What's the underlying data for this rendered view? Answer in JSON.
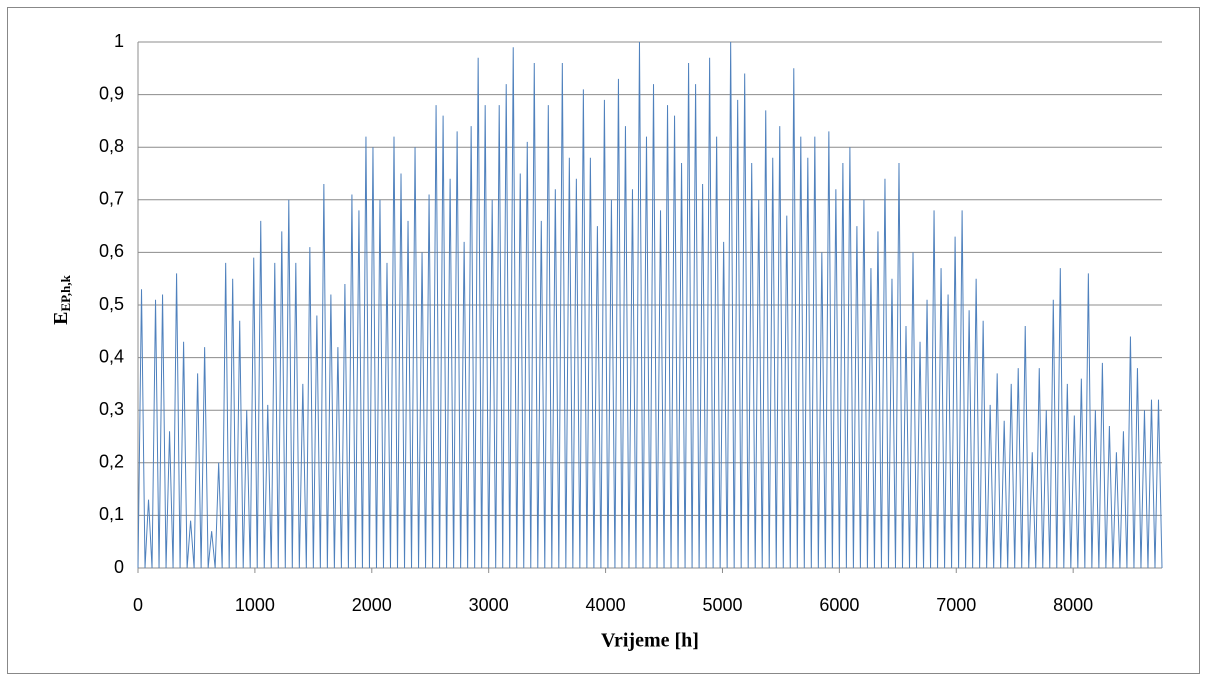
{
  "chart_data": {
    "type": "line",
    "xlabel": "Vrijeme [h]",
    "ylabel": "E",
    "ylabel_sub": "EP,h,k",
    "x": [
      0,
      30,
      60,
      90,
      120,
      150,
      180,
      210,
      240,
      270,
      300,
      330,
      360,
      390,
      420,
      450,
      480,
      510,
      540,
      570,
      600,
      630,
      660,
      690,
      720,
      750,
      780,
      810,
      840,
      870,
      900,
      930,
      960,
      990,
      1020,
      1050,
      1080,
      1110,
      1140,
      1170,
      1200,
      1230,
      1260,
      1290,
      1320,
      1350,
      1380,
      1410,
      1440,
      1470,
      1500,
      1530,
      1560,
      1590,
      1620,
      1650,
      1680,
      1710,
      1740,
      1770,
      1800,
      1830,
      1860,
      1890,
      1920,
      1950,
      1980,
      2010,
      2040,
      2070,
      2100,
      2130,
      2160,
      2190,
      2220,
      2250,
      2280,
      2310,
      2340,
      2370,
      2400,
      2430,
      2460,
      2490,
      2520,
      2550,
      2580,
      2610,
      2640,
      2670,
      2700,
      2730,
      2760,
      2790,
      2820,
      2850,
      2880,
      2910,
      2940,
      2970,
      3000,
      3030,
      3060,
      3090,
      3120,
      3150,
      3180,
      3210,
      3240,
      3270,
      3300,
      3330,
      3360,
      3390,
      3420,
      3450,
      3480,
      3510,
      3540,
      3570,
      3600,
      3630,
      3660,
      3690,
      3720,
      3750,
      3780,
      3810,
      3840,
      3870,
      3900,
      3930,
      3960,
      3990,
      4020,
      4050,
      4080,
      4110,
      4140,
      4170,
      4200,
      4230,
      4260,
      4290,
      4320,
      4350,
      4380,
      4410,
      4440,
      4470,
      4500,
      4530,
      4560,
      4590,
      4620,
      4650,
      4680,
      4710,
      4740,
      4770,
      4800,
      4830,
      4860,
      4890,
      4920,
      4950,
      4980,
      5010,
      5040,
      5070,
      5100,
      5130,
      5160,
      5190,
      5220,
      5250,
      5280,
      5310,
      5340,
      5370,
      5400,
      5430,
      5460,
      5490,
      5520,
      5550,
      5580,
      5610,
      5640,
      5670,
      5700,
      5730,
      5760,
      5790,
      5820,
      5850,
      5880,
      5910,
      5940,
      5970,
      6000,
      6030,
      6060,
      6090,
      6120,
      6150,
      6180,
      6210,
      6240,
      6270,
      6300,
      6330,
      6360,
      6390,
      6420,
      6450,
      6480,
      6510,
      6540,
      6570,
      6600,
      6630,
      6660,
      6690,
      6720,
      6750,
      6780,
      6810,
      6840,
      6870,
      6900,
      6930,
      6960,
      6990,
      7020,
      7050,
      7080,
      7110,
      7140,
      7170,
      7200,
      7230,
      7260,
      7290,
      7320,
      7350,
      7380,
      7410,
      7440,
      7470,
      7500,
      7530,
      7560,
      7590,
      7620,
      7650,
      7680,
      7710,
      7740,
      7770,
      7800,
      7830,
      7860,
      7890,
      7920,
      7950,
      7980,
      8010,
      8040,
      8070,
      8100,
      8130,
      8160,
      8190,
      8220,
      8250,
      8280,
      8310,
      8340,
      8370,
      8400,
      8430,
      8460,
      8490,
      8520,
      8550,
      8580,
      8610,
      8640,
      8670,
      8700,
      8730,
      8760
    ],
    "series": [
      {
        "color": "#4f81bd",
        "values": [
          0,
          0.53,
          0,
          0.13,
          0,
          0.51,
          0,
          0.52,
          0,
          0.26,
          0,
          0.56,
          0,
          0.43,
          0,
          0.09,
          0,
          0.37,
          0,
          0.42,
          0,
          0.07,
          0,
          0.2,
          0,
          0.58,
          0,
          0.55,
          0,
          0.47,
          0,
          0.3,
          0,
          0.59,
          0,
          0.66,
          0,
          0.31,
          0,
          0.58,
          0,
          0.64,
          0,
          0.7,
          0,
          0.58,
          0,
          0.35,
          0,
          0.61,
          0,
          0.48,
          0,
          0.73,
          0,
          0.52,
          0,
          0.42,
          0,
          0.54,
          0,
          0.71,
          0,
          0.68,
          0,
          0.82,
          0,
          0.8,
          0,
          0.7,
          0,
          0.58,
          0,
          0.82,
          0,
          0.75,
          0,
          0.66,
          0,
          0.8,
          0,
          0.6,
          0,
          0.71,
          0,
          0.88,
          0,
          0.86,
          0,
          0.74,
          0,
          0.83,
          0,
          0.62,
          0,
          0.84,
          0,
          0.97,
          0,
          0.88,
          0,
          0.7,
          0,
          0.88,
          0,
          0.92,
          0,
          0.99,
          0,
          0.75,
          0,
          0.81,
          0,
          0.96,
          0,
          0.66,
          0,
          0.88,
          0,
          0.72,
          0,
          0.96,
          0,
          0.78,
          0,
          0.74,
          0,
          0.91,
          0,
          0.78,
          0,
          0.65,
          0,
          0.89,
          0,
          0.7,
          0,
          0.93,
          0,
          0.84,
          0,
          0.72,
          0,
          1,
          0,
          0.82,
          0,
          0.92,
          0,
          0.68,
          0,
          0.88,
          0,
          0.86,
          0,
          0.77,
          0,
          0.96,
          0,
          0.92,
          0,
          0.73,
          0,
          0.97,
          0,
          0.82,
          0,
          0.62,
          0,
          1,
          0,
          0.89,
          0,
          0.94,
          0,
          0.77,
          0,
          0.7,
          0,
          0.87,
          0,
          0.78,
          0,
          0.84,
          0,
          0.67,
          0,
          0.95,
          0,
          0.82,
          0,
          0.78,
          0,
          0.82,
          0,
          0.6,
          0,
          0.83,
          0,
          0.72,
          0,
          0.77,
          0,
          0.8,
          0,
          0.65,
          0,
          0.7,
          0,
          0.57,
          0,
          0.64,
          0,
          0.74,
          0,
          0.55,
          0,
          0.77,
          0,
          0.46,
          0,
          0.6,
          0,
          0.43,
          0,
          0.51,
          0,
          0.68,
          0,
          0.57,
          0,
          0.52,
          0,
          0.63,
          0,
          0.68,
          0,
          0.49,
          0,
          0.55,
          0,
          0.47,
          0,
          0.31,
          0,
          0.37,
          0,
          0.28,
          0,
          0.35,
          0,
          0.38,
          0,
          0.46,
          0,
          0.22,
          0,
          0.38,
          0,
          0.3,
          0,
          0.51,
          0,
          0.57,
          0,
          0.35,
          0,
          0.29,
          0,
          0.36,
          0,
          0.56,
          0,
          0.3,
          0,
          0.39,
          0,
          0.27,
          0,
          0.22,
          0,
          0.26,
          0,
          0.44,
          0,
          0.38,
          0,
          0.3,
          0,
          0.32,
          0,
          0.32,
          0
        ]
      }
    ],
    "xlim": [
      0,
      8760
    ],
    "xticks": [
      0,
      1000,
      2000,
      3000,
      4000,
      5000,
      6000,
      7000,
      8000
    ],
    "ylim": [
      0,
      1
    ],
    "yticks": [
      0,
      {
        "value": 0.1,
        "label": "0,1"
      },
      {
        "value": 0.2,
        "label": "0,2"
      },
      {
        "value": 0.3,
        "label": "0,3"
      },
      {
        "value": 0.4,
        "label": "0,4"
      },
      {
        "value": 0.5,
        "label": "0,5"
      },
      {
        "value": 0.6,
        "label": "0,6"
      },
      {
        "value": 0.7,
        "label": "0,7"
      },
      {
        "value": 0.8,
        "label": "0,8"
      },
      {
        "value": 0.9,
        "label": "0,9"
      },
      1
    ],
    "grid": true
  }
}
